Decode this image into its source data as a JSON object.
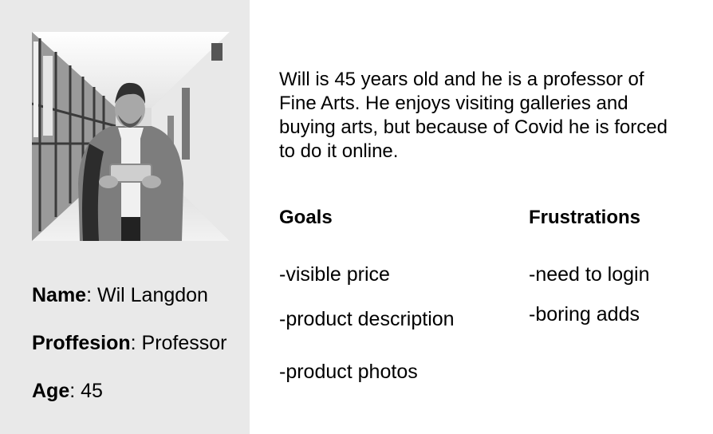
{
  "persona": {
    "photo_alt": "portrait-photo",
    "details": [
      {
        "key": "Name",
        "value": ": Wil Langdon"
      },
      {
        "key": "Proffesion",
        "value": ": Professor"
      },
      {
        "key": "Age",
        "value": ": 45"
      }
    ],
    "bio": "Will is 45 years old and he is a professor of Fine Arts. He enjoys visiting galleries and buying arts, but because of Covid he is forced to do it online."
  },
  "goals": {
    "title": "Goals",
    "items": [
      "-visible price",
      "-product description",
      "-product photos"
    ]
  },
  "frustrations": {
    "title": "Frustrations",
    "items": [
      "-need to login",
      "-boring adds"
    ]
  },
  "colors": {
    "left_panel": "#e9e9e9",
    "text": "#000000",
    "background": "#ffffff"
  }
}
